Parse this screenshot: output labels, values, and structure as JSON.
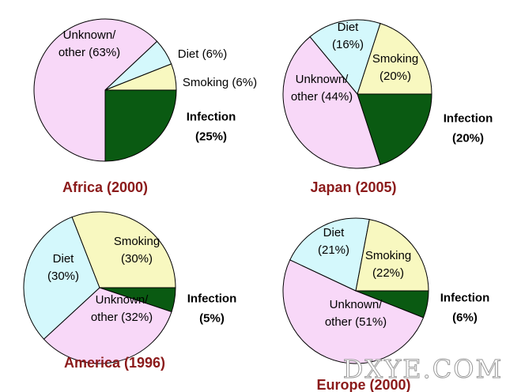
{
  "colors": {
    "Unknown/other": "#f8d8f8",
    "Diet": "#d4f8fc",
    "Smoking": "#f8f8c0",
    "Infection": "#0a5a12",
    "title": "#8b1a1a"
  },
  "chart_data": [
    {
      "type": "pie",
      "title": "Africa (2000)",
      "slices": [
        {
          "label": "Infection",
          "value": 25,
          "label_lines": [
            "Infection",
            "(25%)"
          ]
        },
        {
          "label": "Unknown/other",
          "value": 63,
          "label_lines": [
            "Unknown/",
            "other (63%)"
          ]
        },
        {
          "label": "Diet",
          "value": 6,
          "label_lines": [
            "Diet (6%)"
          ]
        },
        {
          "label": "Smoking",
          "value": 6,
          "label_lines": [
            "Smoking (6%)"
          ]
        }
      ]
    },
    {
      "type": "pie",
      "title": "Japan (2005)",
      "slices": [
        {
          "label": "Infection",
          "value": 20,
          "label_lines": [
            "Infection",
            "(20%)"
          ]
        },
        {
          "label": "Unknown/other",
          "value": 44,
          "label_lines": [
            "Unknown/",
            "other (44%)"
          ]
        },
        {
          "label": "Diet",
          "value": 16,
          "label_lines": [
            "Diet",
            "(16%)"
          ]
        },
        {
          "label": "Smoking",
          "value": 20,
          "label_lines": [
            "Smoking",
            "(20%)"
          ]
        }
      ]
    },
    {
      "type": "pie",
      "title": "America (1996)",
      "slices": [
        {
          "label": "Infection",
          "value": 5,
          "label_lines": [
            "Infection",
            "(5%)"
          ]
        },
        {
          "label": "Unknown/other",
          "value": 32,
          "label_lines": [
            "Unknown/",
            "other (32%)"
          ]
        },
        {
          "label": "Diet",
          "value": 30,
          "label_lines": [
            "Diet",
            "(30%)"
          ]
        },
        {
          "label": "Smoking",
          "value": 30,
          "label_lines": [
            "Smoking",
            "(30%)"
          ]
        }
      ]
    },
    {
      "type": "pie",
      "title": "Europe (2000)",
      "slices": [
        {
          "label": "Infection",
          "value": 6,
          "label_lines": [
            "Infection",
            "(6%)"
          ]
        },
        {
          "label": "Unknown/other",
          "value": 51,
          "label_lines": [
            "Unknown/",
            "other (51%)"
          ]
        },
        {
          "label": "Diet",
          "value": 21,
          "label_lines": [
            "Diet",
            "(21%)"
          ]
        },
        {
          "label": "Smoking",
          "value": 22,
          "label_lines": [
            "Smoking",
            "(22%)"
          ]
        }
      ]
    }
  ],
  "watermark": "DXYE.COM"
}
